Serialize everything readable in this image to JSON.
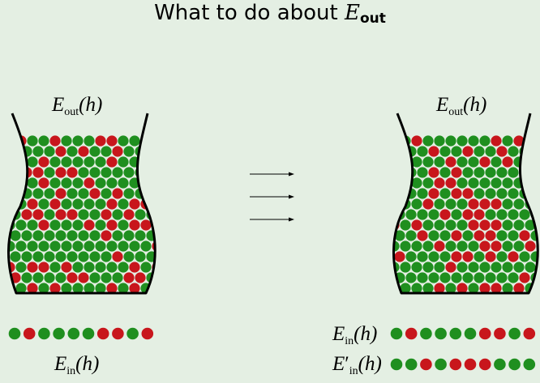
{
  "title": {
    "prefix": "What to do about ",
    "symbol": "E",
    "subscript": "out"
  },
  "left_bin": {
    "label": {
      "symbol": "E",
      "subscript": "out",
      "arg": "(h)"
    }
  },
  "right_bin": {
    "label": {
      "symbol": "E",
      "subscript": "out",
      "arg": "(h)"
    }
  },
  "left_sample": {
    "label": {
      "symbol": "E",
      "subscript": "in",
      "arg": "(h)"
    },
    "marbles": [
      "green",
      "red",
      "green",
      "green",
      "green",
      "green",
      "red",
      "red",
      "green",
      "red"
    ]
  },
  "right_sample_1": {
    "label": {
      "symbol": "E",
      "subscript": "in",
      "arg": "(h)"
    },
    "marbles": [
      "green",
      "red",
      "green",
      "green",
      "green",
      "green",
      "red",
      "red",
      "green",
      "red"
    ]
  },
  "right_sample_2": {
    "label": {
      "symbol": "E",
      "prime": "′",
      "subscript": "in",
      "arg": "(h)"
    },
    "marbles": [
      "green",
      "green",
      "red",
      "green",
      "red",
      "red",
      "red",
      "green",
      "green",
      "green"
    ]
  },
  "colors": {
    "background": "#e4efe3",
    "green_marble": "#1f8f1f",
    "red_marble": "#c8161c",
    "outline": "#000000"
  },
  "arrows": 3
}
